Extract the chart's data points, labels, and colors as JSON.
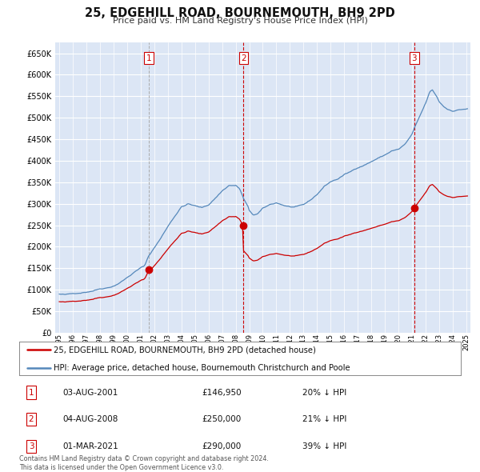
{
  "title": "25, EDGEHILL ROAD, BOURNEMOUTH, BH9 2PD",
  "subtitle": "Price paid vs. HM Land Registry's House Price Index (HPI)",
  "ytick_values": [
    0,
    50000,
    100000,
    150000,
    200000,
    250000,
    300000,
    350000,
    400000,
    450000,
    500000,
    550000,
    600000,
    650000
  ],
  "ylim": [
    0,
    675000
  ],
  "sale_color": "#cc0000",
  "hpi_color": "#5588bb",
  "vline_color_1": "#aaaaaa",
  "vline_color_23": "#cc0000",
  "background_color": "#ffffff",
  "plot_bg_color": "#dce6f5",
  "legend_entries": [
    "25, EDGEHILL ROAD, BOURNEMOUTH, BH9 2PD (detached house)",
    "HPI: Average price, detached house, Bournemouth Christchurch and Poole"
  ],
  "table_rows": [
    {
      "num": "1",
      "date": "03-AUG-2001",
      "price": "£146,950",
      "pct": "20% ↓ HPI"
    },
    {
      "num": "2",
      "date": "04-AUG-2008",
      "price": "£250,000",
      "pct": "21% ↓ HPI"
    },
    {
      "num": "3",
      "date": "01-MAR-2021",
      "price": "£290,000",
      "pct": "39% ↓ HPI"
    }
  ],
  "footer": "Contains HM Land Registry data © Crown copyright and database right 2024.\nThis data is licensed under the Open Government Licence v3.0.",
  "sale_dates_yr": [
    2001.583,
    2008.583,
    2021.167
  ],
  "sale_prices": [
    146950,
    250000,
    290000
  ],
  "xlim": [
    1994.7,
    2025.3
  ]
}
